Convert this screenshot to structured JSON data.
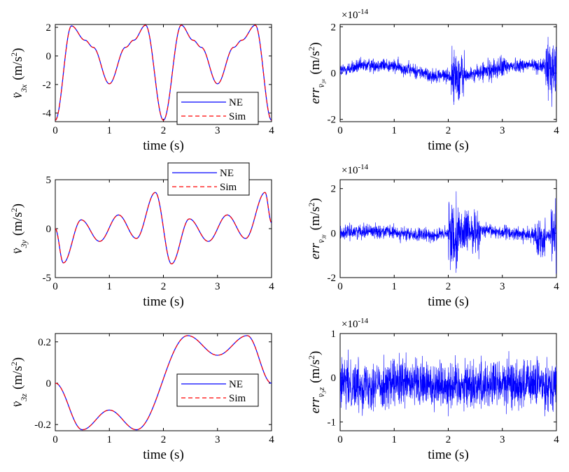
{
  "chart_data": [
    {
      "id": "p1",
      "type": "line",
      "title": "",
      "xlabel": "time (s)",
      "ylabel": {
        "sym": "v̈",
        "sub": "3x",
        "unit": "(m/s",
        "exp": "2",
        "close": ")"
      },
      "xlim": [
        0,
        4
      ],
      "ylim": [
        -4.6,
        2.2
      ],
      "xticks": [
        "0",
        "1",
        "2",
        "3",
        "4"
      ],
      "yticks": [
        {
          "v": 2,
          "label": "2"
        },
        {
          "v": 0,
          "label": "0"
        },
        {
          "v": -2,
          "label": "-2"
        },
        {
          "v": -4,
          "label": "-4"
        }
      ],
      "legend": {
        "position": "bottom-right",
        "entries": [
          "NE",
          "Sim"
        ]
      },
      "series": [
        {
          "name": "NE",
          "style": "solid",
          "color": "#0000ff"
        },
        {
          "name": "Sim",
          "style": "dashed",
          "color": "#ff0000"
        }
      ],
      "shape": {
        "kind": "x",
        "ymin": -4.6,
        "ymax": 2.2
      }
    },
    {
      "id": "p2",
      "type": "line",
      "title": "",
      "xlabel": "time (s)",
      "ylabel": {
        "sym": "err",
        "sub": "v̈₃ₓ",
        "unit": "(m/s",
        "exp": "2",
        "close": ")"
      },
      "xlim": [
        0,
        4
      ],
      "ylim": [
        -2.1,
        2.1
      ],
      "multiplier": {
        "base": "×10",
        "exp": "-14"
      },
      "xticks": [
        "0",
        "1",
        "2",
        "3",
        "4"
      ],
      "yticks": [
        {
          "v": 2,
          "label": "2"
        },
        {
          "v": 0,
          "label": "0"
        },
        {
          "v": -2,
          "label": "-2"
        }
      ],
      "series": [
        {
          "name": "err",
          "style": "noise",
          "color": "#0000ff"
        }
      ],
      "shape": {
        "kind": "err1"
      }
    },
    {
      "id": "p3",
      "type": "line",
      "title": "",
      "xlabel": "time (s)",
      "ylabel": {
        "sym": "v̈",
        "sub": "3y",
        "unit": "(m/s",
        "exp": "2",
        "close": ")"
      },
      "xlim": [
        0,
        4
      ],
      "ylim": [
        -5,
        5
      ],
      "xticks": [
        "0",
        "1",
        "2",
        "3",
        "4"
      ],
      "yticks": [
        {
          "v": 5,
          "label": "5"
        },
        {
          "v": 0,
          "label": "0"
        },
        {
          "v": -5,
          "label": "-5"
        }
      ],
      "legend": {
        "position": "top-center",
        "entries": [
          "NE",
          "Sim"
        ]
      },
      "series": [
        {
          "name": "NE",
          "style": "solid",
          "color": "#0000ff"
        },
        {
          "name": "Sim",
          "style": "dashed",
          "color": "#ff0000"
        }
      ],
      "shape": {
        "kind": "y"
      }
    },
    {
      "id": "p4",
      "type": "line",
      "title": "",
      "xlabel": "time (s)",
      "ylabel": {
        "sym": "err",
        "sub": "v̈₃ᵧ",
        "unit": "(m/s",
        "exp": "2",
        "close": ")"
      },
      "xlim": [
        0,
        4
      ],
      "ylim": [
        -2,
        2.4
      ],
      "multiplier": {
        "base": "×10",
        "exp": "-14"
      },
      "xticks": [
        "0",
        "1",
        "2",
        "3",
        "4"
      ],
      "yticks": [
        {
          "v": 2,
          "label": "2"
        },
        {
          "v": 0,
          "label": "0"
        },
        {
          "v": -2,
          "label": "-2"
        }
      ],
      "series": [
        {
          "name": "err",
          "style": "noise",
          "color": "#0000ff"
        }
      ],
      "shape": {
        "kind": "err2"
      }
    },
    {
      "id": "p5",
      "type": "line",
      "title": "",
      "xlabel": "time (s)",
      "ylabel": {
        "sym": "v̈",
        "sub": "3z",
        "unit": "(m/s",
        "exp": "2",
        "close": ")"
      },
      "xlim": [
        0,
        4
      ],
      "ylim": [
        -0.23,
        0.24
      ],
      "xticks": [
        "0",
        "1",
        "2",
        "3",
        "4"
      ],
      "yticks": [
        {
          "v": 0.2,
          "label": "0.2"
        },
        {
          "v": 0,
          "label": "0"
        },
        {
          "v": -0.2,
          "label": "-0.2"
        }
      ],
      "legend": {
        "position": "center-right",
        "entries": [
          "NE",
          "Sim"
        ]
      },
      "series": [
        {
          "name": "NE",
          "style": "solid",
          "color": "#0000ff"
        },
        {
          "name": "Sim",
          "style": "dashed",
          "color": "#ff0000"
        }
      ],
      "shape": {
        "kind": "z"
      }
    },
    {
      "id": "p6",
      "type": "line",
      "title": "",
      "xlabel": "time (s)",
      "ylabel": {
        "sym": "err",
        "sub": "v̈₃z",
        "unit": "(m/s",
        "exp": "2",
        "close": ")"
      },
      "xlim": [
        0,
        4
      ],
      "ylim": [
        -1.2,
        1
      ],
      "multiplier": {
        "base": "×10",
        "exp": "-14"
      },
      "xticks": [
        "0",
        "1",
        "2",
        "3",
        "4"
      ],
      "yticks": [
        {
          "v": 1,
          "label": "1"
        },
        {
          "v": 0,
          "label": "0"
        },
        {
          "v": -1,
          "label": "-1"
        }
      ],
      "series": [
        {
          "name": "err",
          "style": "noise",
          "color": "#0000ff"
        }
      ],
      "shape": {
        "kind": "err3"
      }
    }
  ]
}
